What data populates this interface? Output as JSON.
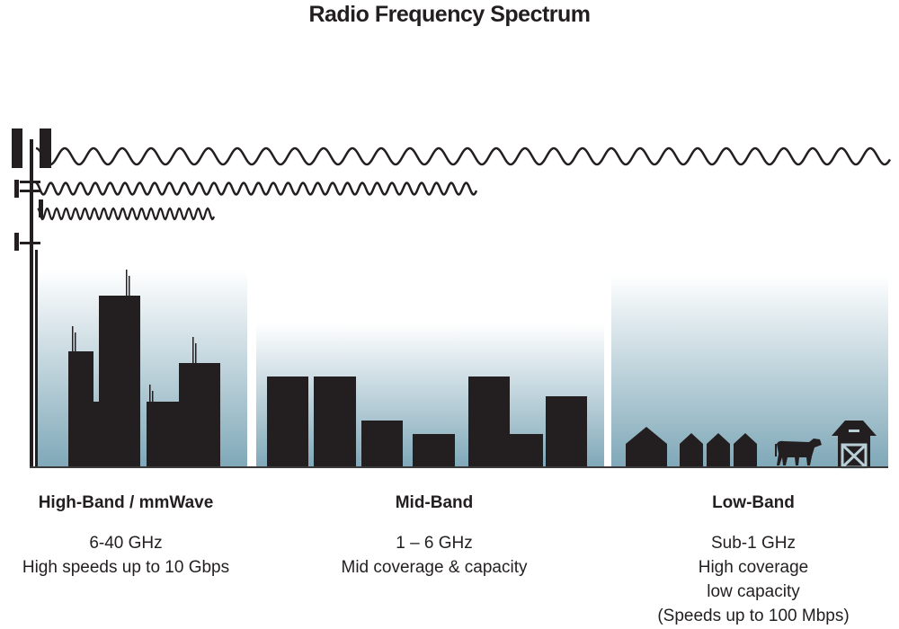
{
  "title": "Radio Frequency Spectrum",
  "bands": [
    {
      "name": "High-Band / mmWave",
      "lines": [
        "6-40 GHz",
        "High speeds up to 10 Gbps"
      ]
    },
    {
      "name": "Mid-Band",
      "lines": [
        "1 – 6 GHz",
        "Mid coverage & capacity"
      ]
    },
    {
      "name": "Low-Band",
      "lines": [
        "Sub-1 GHz",
        "High coverage",
        "low capacity",
        "(Speeds up to 100 Mbps)"
      ]
    }
  ],
  "colors": {
    "ink": "#231f20",
    "sky_bottom": "#7fa8b8"
  }
}
